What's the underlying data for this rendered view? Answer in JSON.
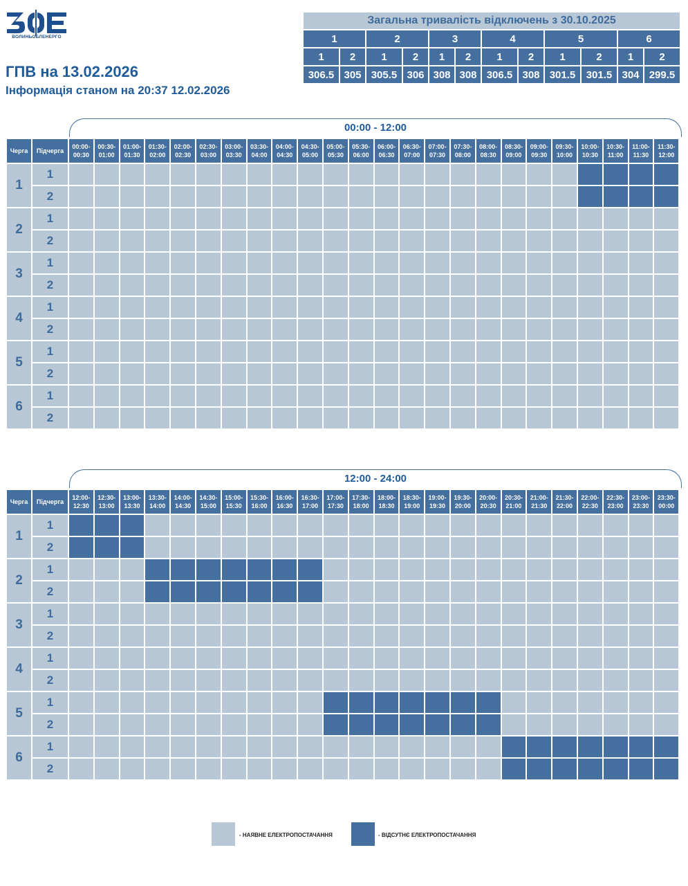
{
  "logo": {
    "text": "ВОЛИНЬОБЛЕНЕРГО"
  },
  "title": "ГПВ на 13.02.2026",
  "subtitle": "Інформація станом на 20:37 12.02.2026",
  "summary": {
    "caption": "Загальна тривалість відключень з 30.10.2025",
    "queues": [
      "1",
      "2",
      "3",
      "4",
      "5",
      "6"
    ],
    "subqueues": [
      "1",
      "2"
    ],
    "values": [
      "306.5",
      "305",
      "305.5",
      "306",
      "308",
      "308",
      "306.5",
      "308",
      "301.5",
      "301.5",
      "304",
      "299.5"
    ]
  },
  "grid": {
    "col_queue": "Черга",
    "col_subqueue": "Підчерга",
    "queues": [
      "1",
      "2",
      "3",
      "4",
      "5",
      "6"
    ],
    "subqueues": [
      "1",
      "2"
    ],
    "periods": [
      {
        "label": "00:00 - 12:00",
        "slots": [
          "00:00-00:30",
          "00:30-01:00",
          "01:00-01:30",
          "01:30-02:00",
          "02:00-02:30",
          "02:30-03:00",
          "03:00-03:30",
          "03:30-04:00",
          "04:00-04:30",
          "04:30-05:00",
          "05:00-05:30",
          "05:30-06:00",
          "06:00-06:30",
          "06:30-07:00",
          "07:00-07:30",
          "07:30-08:00",
          "08:00-08:30",
          "08:30-09:00",
          "09:00-09:30",
          "09:30-10:00",
          "10:00-10:30",
          "10:30-11:00",
          "11:00-11:30",
          "11:30-12:00"
        ],
        "outages": {
          "1.1": [
            20,
            21,
            22,
            23
          ],
          "1.2": [
            20,
            21,
            22,
            23
          ],
          "2.1": [],
          "2.2": [],
          "3.1": [],
          "3.2": [],
          "4.1": [],
          "4.2": [],
          "5.1": [],
          "5.2": [],
          "6.1": [],
          "6.2": []
        }
      },
      {
        "label": "12:00 - 24:00",
        "slots": [
          "12:00-12:30",
          "12:30-13:00",
          "13:00-13:30",
          "13:30-14:00",
          "14:00-14:30",
          "14:30-15:00",
          "15:00-15:30",
          "15:30-16:00",
          "16:00-16:30",
          "16:30-17:00",
          "17:00-17:30",
          "17:30-18:00",
          "18:00-18:30",
          "18:30-19:00",
          "19:00-19:30",
          "19:30-20:00",
          "20:00-20:30",
          "20:30-21:00",
          "21:00-21:30",
          "21:30-22:00",
          "22:00-22:30",
          "22:30-23:00",
          "23:00-23:30",
          "23:30-00:00"
        ],
        "outages": {
          "1.1": [
            0,
            1,
            2
          ],
          "1.2": [
            0,
            1,
            2
          ],
          "2.1": [
            3,
            4,
            5,
            6,
            7,
            8,
            9
          ],
          "2.2": [
            3,
            4,
            5,
            6,
            7,
            8,
            9
          ],
          "3.1": [],
          "3.2": [],
          "4.1": [],
          "4.2": [],
          "5.1": [
            10,
            11,
            12,
            13,
            14,
            15,
            16
          ],
          "5.2": [
            10,
            11,
            12,
            13,
            14,
            15,
            16
          ],
          "6.1": [
            17,
            18,
            19,
            20,
            21,
            22,
            23
          ],
          "6.2": [
            17,
            18,
            19,
            20,
            21,
            22,
            23
          ]
        }
      }
    ]
  },
  "legend": {
    "on_label": "- НАЯВНЕ ЕЛЕКТРОПОСТАЧАННЯ",
    "off_label": "- ВІДСУТНЄ ЕЛЕКТРОПОСТАЧАННЯ"
  },
  "colors": {
    "on": "#b8c7d6",
    "off": "#456f9f",
    "accent": "#1f5a99"
  }
}
